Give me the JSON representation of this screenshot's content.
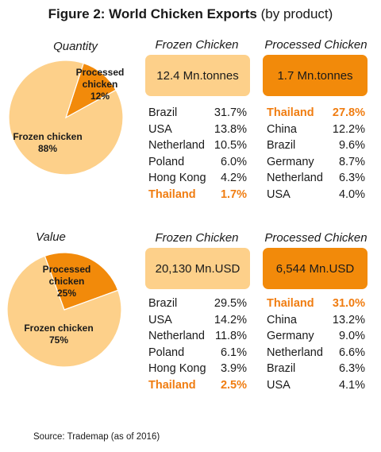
{
  "title_bold": "Figure 2: World Chicken Exports",
  "title_rest": " (by product)",
  "colors": {
    "frozen": "#fdd08a",
    "processed": "#f28a0a",
    "highlight": "#f07d11"
  },
  "chart_data": [
    {
      "type": "pie",
      "title": "Quantity",
      "slices": [
        {
          "label": "Processed chicken",
          "value": 12,
          "value_label": "12%"
        },
        {
          "label": "Frozen chicken",
          "value": 88,
          "value_label": "88%"
        }
      ]
    },
    {
      "type": "pie",
      "title": "Value",
      "slices": [
        {
          "label": "Processed chicken",
          "value": 25,
          "value_label": "25%"
        },
        {
          "label": "Frozen chicken",
          "value": 75,
          "value_label": "75%"
        }
      ]
    }
  ],
  "sections": [
    {
      "frozen": {
        "heading": "Frozen Chicken",
        "total": "12.4 Mn.tonnes",
        "rows": [
          {
            "country": "Brazil",
            "share": "31.7%"
          },
          {
            "country": "USA",
            "share": "13.8%"
          },
          {
            "country": "Netherland",
            "share": "10.5%"
          },
          {
            "country": "Poland",
            "share": "6.0%"
          },
          {
            "country": "Hong Kong",
            "share": "4.2%"
          },
          {
            "country": "Thailand",
            "share": "1.7%",
            "highlight": true
          }
        ]
      },
      "processed": {
        "heading": "Processed Chicken",
        "total": "1.7 Mn.tonnes",
        "rows": [
          {
            "country": "Thailand",
            "share": "27.8%",
            "highlight": true
          },
          {
            "country": "China",
            "share": "12.2%"
          },
          {
            "country": "Brazil",
            "share": "9.6%"
          },
          {
            "country": "Germany",
            "share": "8.7%"
          },
          {
            "country": "Netherland",
            "share": "6.3%"
          },
          {
            "country": "USA",
            "share": "4.0%"
          }
        ]
      }
    },
    {
      "frozen": {
        "heading": "Frozen Chicken",
        "total": "20,130 Mn.USD",
        "rows": [
          {
            "country": "Brazil",
            "share": "29.5%"
          },
          {
            "country": "USA",
            "share": "14.2%"
          },
          {
            "country": "Netherland",
            "share": "11.8%"
          },
          {
            "country": "Poland",
            "share": "6.1%"
          },
          {
            "country": "Hong Kong",
            "share": "3.9%"
          },
          {
            "country": "Thailand",
            "share": "2.5%",
            "highlight": true
          }
        ]
      },
      "processed": {
        "heading": "Processed Chicken",
        "total": "6,544 Mn.USD",
        "rows": [
          {
            "country": "Thailand",
            "share": "31.0%",
            "highlight": true
          },
          {
            "country": "China",
            "share": "13.2%"
          },
          {
            "country": "Germany",
            "share": "9.0%"
          },
          {
            "country": "Netherland",
            "share": "6.6%"
          },
          {
            "country": "Brazil",
            "share": "6.3%"
          },
          {
            "country": "USA",
            "share": "4.1%"
          }
        ]
      }
    }
  ],
  "source": "Source: Trademap (as of 2016)"
}
